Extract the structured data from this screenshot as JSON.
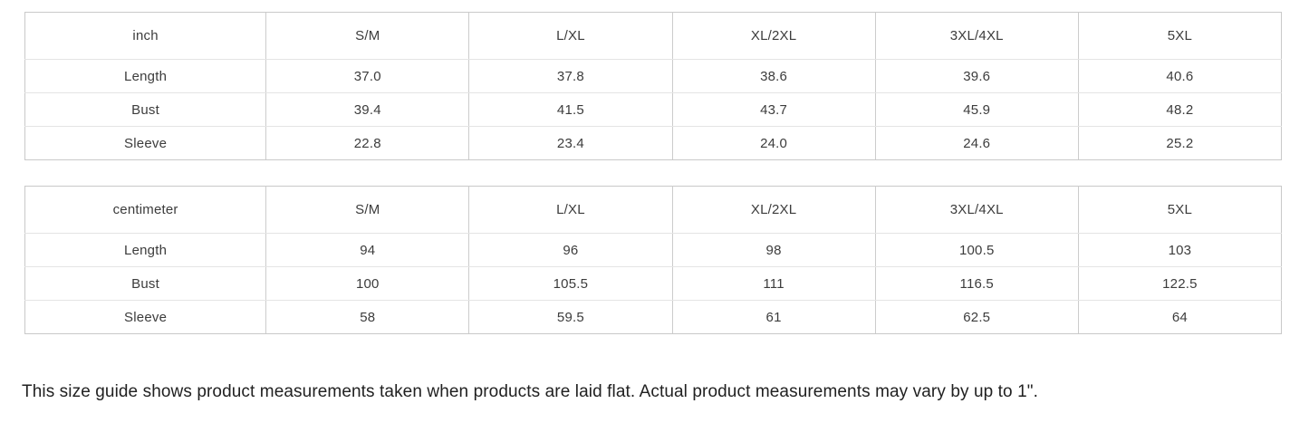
{
  "tables": [
    {
      "unit_header": "inch",
      "size_headers": [
        "S/M",
        "L/XL",
        "XL/2XL",
        "3XL/4XL",
        "5XL"
      ],
      "rows": [
        {
          "label": "Length",
          "values": [
            "37.0",
            "37.8",
            "38.6",
            "39.6",
            "40.6"
          ]
        },
        {
          "label": "Bust",
          "values": [
            "39.4",
            "41.5",
            "43.7",
            "45.9",
            "48.2"
          ]
        },
        {
          "label": "Sleeve",
          "values": [
            "22.8",
            "23.4",
            "24.0",
            "24.6",
            "25.2"
          ]
        }
      ]
    },
    {
      "unit_header": "centimeter",
      "size_headers": [
        "S/M",
        "L/XL",
        "XL/2XL",
        "3XL/4XL",
        "5XL"
      ],
      "rows": [
        {
          "label": "Length",
          "values": [
            "94",
            "96",
            "98",
            "100.5",
            "103"
          ]
        },
        {
          "label": "Bust",
          "values": [
            "100",
            "105.5",
            "111",
            "116.5",
            "122.5"
          ]
        },
        {
          "label": "Sleeve",
          "values": [
            "58",
            "59.5",
            "61",
            "62.5",
            "64"
          ]
        }
      ]
    }
  ],
  "note": "This size guide shows product measurements taken when products are laid flat. Actual product measurements may vary by up to 1\".",
  "colors": {
    "background": "#ffffff",
    "border_outer": "#c9c9c9",
    "border_vertical": "#cccccc",
    "border_horizontal": "#e4e4e4",
    "cell_text": "#3c3c3c",
    "note_text": "#212121"
  }
}
